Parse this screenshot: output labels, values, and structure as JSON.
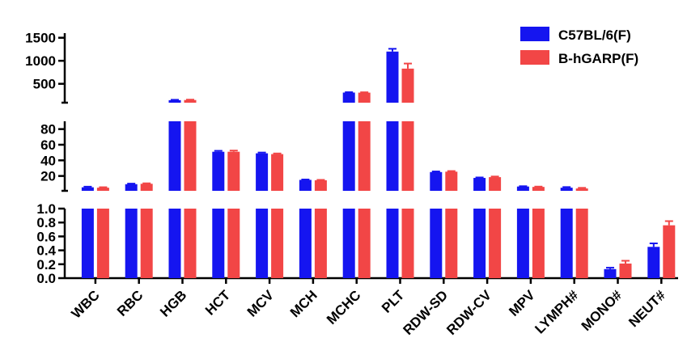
{
  "chart_data": {
    "type": "bar",
    "title": "",
    "xlabel": "",
    "ylabel": "",
    "y_axis": "broken (three segments)",
    "segments": [
      {
        "ylim": [
          0,
          1.0
        ],
        "ticks": [
          "0.0",
          "0.2",
          "0.4",
          "0.6",
          "0.8",
          "1.0"
        ],
        "tick_values": [
          0,
          0.2,
          0.4,
          0.6,
          0.8,
          1.0
        ]
      },
      {
        "ylim": [
          1.0,
          90
        ],
        "ticks": [
          "20",
          "40",
          "60",
          "80"
        ],
        "tick_values": [
          20,
          40,
          60,
          80
        ]
      },
      {
        "ylim": [
          90,
          1600
        ],
        "ticks": [
          "500",
          "1000",
          "1500"
        ],
        "tick_values": [
          500,
          1000,
          1500
        ]
      }
    ],
    "categories": [
      "WBC",
      "RBC",
      "HGB",
      "HCT",
      "MCV",
      "MCH",
      "MCHC",
      "PLT",
      "RDW-SD",
      "RDW-CV",
      "MPV",
      "LYMPH#",
      "MONO#",
      "NEUT#"
    ],
    "series": [
      {
        "name": "C57BL/6(F)",
        "color": "#1515f0",
        "values": [
          5.5,
          9.5,
          145,
          51,
          49,
          15,
          310,
          1200,
          25,
          17.5,
          6.5,
          5.0,
          0.13,
          0.45
        ],
        "errors": [
          0.8,
          0.7,
          8,
          1.2,
          1.0,
          0.5,
          8,
          60,
          0.8,
          0.6,
          0.4,
          0.8,
          0.02,
          0.05
        ]
      },
      {
        "name": "B-hGARP(F)",
        "color": "#f24646",
        "values": [
          5.0,
          10,
          148,
          51,
          48,
          14.5,
          308,
          830,
          25.5,
          18.5,
          6.0,
          4.0,
          0.21,
          0.76
        ],
        "errors": [
          0.6,
          0.6,
          8,
          1.5,
          0.8,
          0.5,
          8,
          110,
          0.8,
          0.8,
          0.4,
          0.8,
          0.04,
          0.06
        ]
      }
    ],
    "legend_position": "top-right",
    "grid": false
  }
}
